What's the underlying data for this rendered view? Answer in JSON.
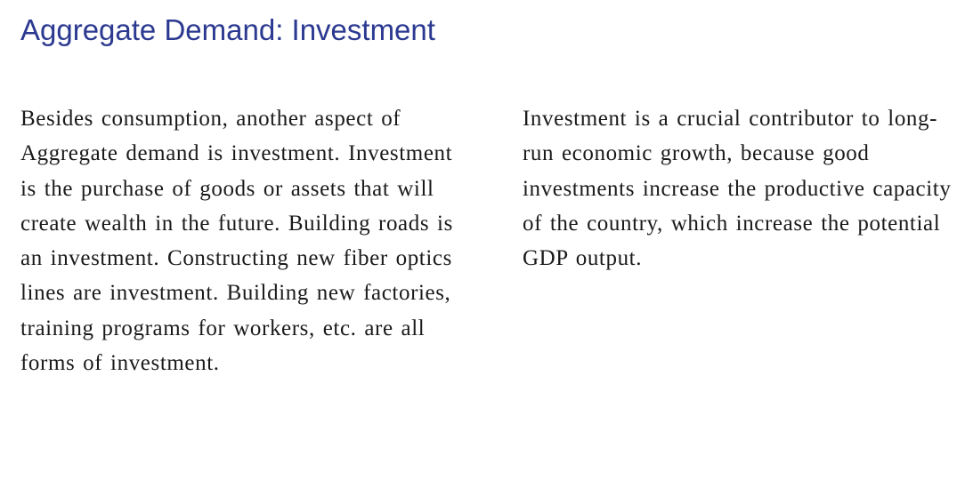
{
  "slide": {
    "title": "Aggregate Demand: Investment",
    "left_paragraph": "Besides consumption, another aspect of Aggregate demand is investment. Investment is the purchase of goods or assets that will create wealth in the future. Building roads is an investment. Constructing new fiber optics lines are investment. Building new factories, training programs for workers, etc. are all forms of investment.",
    "right_paragraph": "Investment is a crucial contributor to long-run economic growth, because good investments increase the productive capacity of the country, which increase the potential GDP output.",
    "title_color": "#2b3990",
    "text_color": "#1a1a1a"
  }
}
